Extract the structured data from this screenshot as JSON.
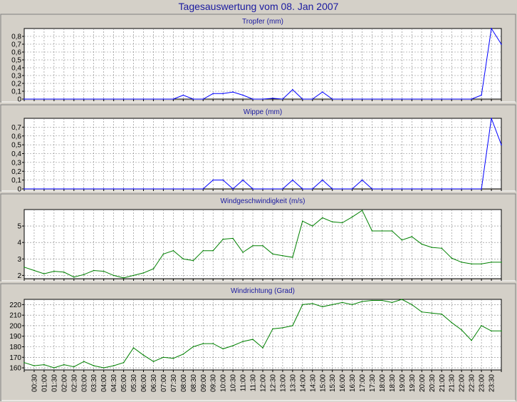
{
  "window": {
    "title": "Tagesauswertung vom 08. Jan 2007"
  },
  "colors": {
    "background": "#d4d0c8",
    "plot_background": "#ffffff",
    "grid": "#808080",
    "title_text": "#1a1aa0",
    "rain_series": "#0000ff",
    "wind_series": "#008000"
  },
  "time_labels": [
    "00:30",
    "01:00",
    "01:30",
    "02:00",
    "02:30",
    "03:00",
    "03:30",
    "04:00",
    "04:30",
    "05:00",
    "05:30",
    "06:00",
    "06:30",
    "07:00",
    "07:30",
    "08:00",
    "08:30",
    "09:00",
    "09:30",
    "10:00",
    "10:30",
    "11:00",
    "11:30",
    "12:00",
    "12:30",
    "13:00",
    "13:30",
    "14:00",
    "14:30",
    "15:00",
    "15:30",
    "16:00",
    "16:30",
    "17:00",
    "17:30",
    "18:00",
    "18:30",
    "19:00",
    "19:30",
    "20:00",
    "20:30",
    "21:00",
    "21:30",
    "22:00",
    "22:30",
    "23:00",
    "23:30"
  ],
  "chart_data": [
    {
      "type": "line",
      "title": "Tropfer (mm)",
      "color": "#0000ff",
      "ylim": [
        0,
        0.9
      ],
      "yticks": [
        0,
        0.1,
        0.2,
        0.3,
        0.4,
        0.5,
        0.6,
        0.7,
        0.8
      ],
      "ytick_labels": [
        "0",
        "0,1",
        "0,2",
        "0,3",
        "0,4",
        "0,5",
        "0,6",
        "0,7",
        "0,8"
      ],
      "grid": true,
      "x": [
        0,
        0.5,
        1,
        1.5,
        2,
        2.5,
        3,
        3.5,
        4,
        4.5,
        5,
        5.5,
        6,
        6.5,
        7,
        7.5,
        8,
        8.5,
        9,
        9.5,
        10,
        10.5,
        11,
        11.5,
        12,
        12.5,
        13,
        13.5,
        14,
        14.5,
        15,
        15.5,
        16,
        16.5,
        17,
        17.5,
        18,
        18.5,
        19,
        19.5,
        20,
        20.5,
        21,
        21.5,
        22,
        22.5,
        23,
        23.5,
        24
      ],
      "values": [
        0,
        0,
        0,
        0,
        0,
        0,
        0,
        0,
        0,
        0,
        0,
        0,
        0,
        0,
        0,
        0,
        0.05,
        0,
        0,
        0.07,
        0.07,
        0.09,
        0.05,
        0,
        0,
        0.01,
        0,
        0.12,
        0,
        0,
        0.09,
        0,
        0,
        0,
        0,
        0,
        0,
        0,
        0,
        0,
        0,
        0,
        0,
        0,
        0,
        0,
        0.05,
        0.9,
        0.7
      ]
    },
    {
      "type": "line",
      "title": "Wippe (mm)",
      "color": "#0000ff",
      "ylim": [
        0,
        0.8
      ],
      "yticks": [
        0,
        0.1,
        0.2,
        0.3,
        0.4,
        0.5,
        0.6,
        0.7
      ],
      "ytick_labels": [
        "0",
        "0,1",
        "0,2",
        "0,3",
        "0,4",
        "0,5",
        "0,6",
        "0,7"
      ],
      "grid": true,
      "x": [
        0,
        0.5,
        1,
        1.5,
        2,
        2.5,
        3,
        3.5,
        4,
        4.5,
        5,
        5.5,
        6,
        6.5,
        7,
        7.5,
        8,
        8.5,
        9,
        9.5,
        10,
        10.5,
        11,
        11.5,
        12,
        12.5,
        13,
        13.5,
        14,
        14.5,
        15,
        15.5,
        16,
        16.5,
        17,
        17.5,
        18,
        18.5,
        19,
        19.5,
        20,
        20.5,
        21,
        21.5,
        22,
        22.5,
        23,
        23.5,
        24
      ],
      "values": [
        0,
        0,
        0,
        0,
        0,
        0,
        0,
        0,
        0,
        0,
        0,
        0,
        0,
        0,
        0,
        0,
        0,
        0,
        0,
        0.1,
        0.1,
        0,
        0.1,
        0,
        0,
        0,
        0,
        0.1,
        0,
        0,
        0.1,
        0,
        0,
        0,
        0.1,
        0,
        0,
        0,
        0,
        0,
        0,
        0,
        0,
        0,
        0,
        0,
        0,
        0.8,
        0.5
      ]
    },
    {
      "type": "line",
      "title": "Windgeschwindigkeit (m/s)",
      "color": "#008000",
      "ylim": [
        1.8,
        6
      ],
      "yticks": [
        2,
        3,
        4,
        5
      ],
      "ytick_labels": [
        "2",
        "3",
        "4",
        "5"
      ],
      "grid": true,
      "x": [
        0,
        0.5,
        1,
        1.5,
        2,
        2.5,
        3,
        3.5,
        4,
        4.5,
        5,
        5.5,
        6,
        6.5,
        7,
        7.5,
        8,
        8.5,
        9,
        9.5,
        10,
        10.5,
        11,
        11.5,
        12,
        12.5,
        13,
        13.5,
        14,
        14.5,
        15,
        15.5,
        16,
        16.5,
        17,
        17.5,
        18,
        18.5,
        19,
        19.5,
        20,
        20.5,
        21,
        21.5,
        22,
        22.5,
        23,
        23.5,
        24
      ],
      "values": [
        2.5,
        2.3,
        2.1,
        2.25,
        2.2,
        1.9,
        2.05,
        2.3,
        2.25,
        2.0,
        1.85,
        2.0,
        2.15,
        2.4,
        3.3,
        3.5,
        3.0,
        2.9,
        3.5,
        3.5,
        4.2,
        4.25,
        3.4,
        3.8,
        3.8,
        3.3,
        3.2,
        3.1,
        5.3,
        5.0,
        5.5,
        5.25,
        5.2,
        5.55,
        5.95,
        4.7,
        4.7,
        4.7,
        4.15,
        4.35,
        3.9,
        3.7,
        3.65,
        3.05,
        2.8,
        2.7,
        2.7,
        2.8,
        2.8
      ]
    },
    {
      "type": "line",
      "title": "Windrichtung (Grad)",
      "color": "#008000",
      "ylim": [
        158,
        225
      ],
      "yticks": [
        160,
        170,
        180,
        190,
        200,
        210,
        220
      ],
      "ytick_labels": [
        "160",
        "170",
        "180",
        "190",
        "200",
        "210",
        "220"
      ],
      "grid": true,
      "x": [
        0,
        0.5,
        1,
        1.5,
        2,
        2.5,
        3,
        3.5,
        4,
        4.5,
        5,
        5.5,
        6,
        6.5,
        7,
        7.5,
        8,
        8.5,
        9,
        9.5,
        10,
        10.5,
        11,
        11.5,
        12,
        12.5,
        13,
        13.5,
        14,
        14.5,
        15,
        15.5,
        16,
        16.5,
        17,
        17.5,
        18,
        18.5,
        19,
        19.5,
        20,
        20.5,
        21,
        21.5,
        22,
        22.5,
        23,
        23.5,
        24
      ],
      "values": [
        165,
        162,
        163,
        160,
        163,
        161,
        166,
        162,
        160,
        162,
        165,
        179,
        172,
        166,
        170,
        169,
        173,
        180,
        183,
        183,
        178,
        181,
        185,
        187,
        179,
        197,
        198,
        200,
        220,
        221,
        218,
        220,
        222,
        220,
        223,
        224,
        224,
        222,
        225,
        220,
        213,
        212,
        211,
        203,
        196,
        186,
        200,
        195,
        195
      ]
    }
  ]
}
